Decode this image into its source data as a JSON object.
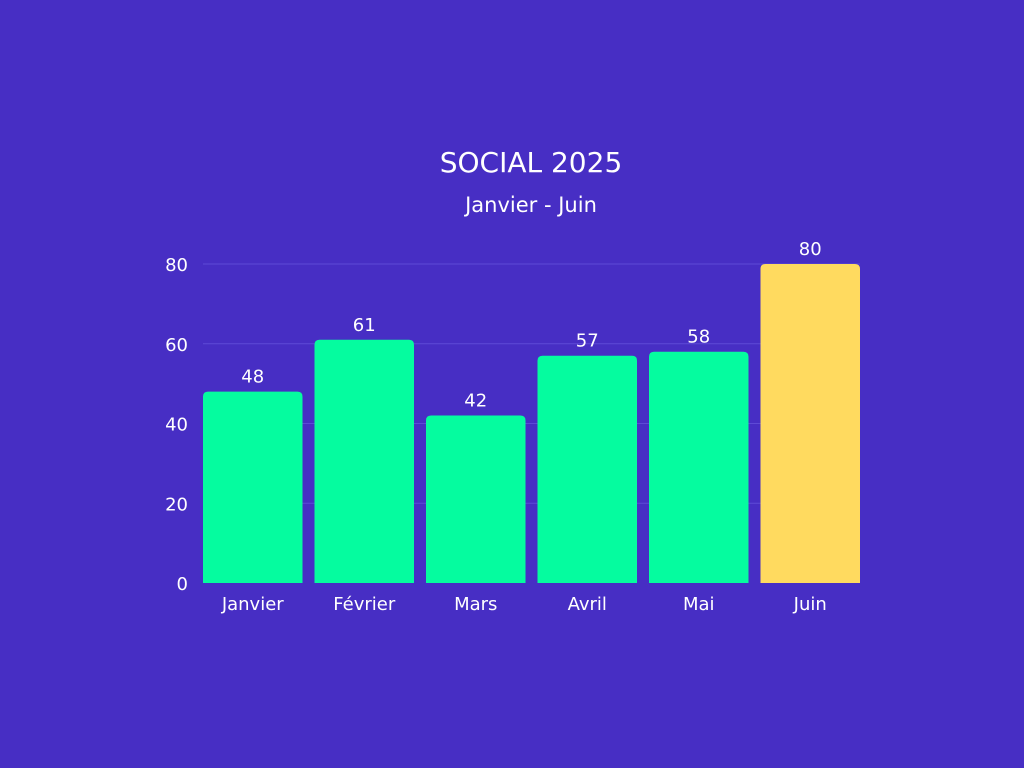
{
  "colors": {
    "background": "#472EC4",
    "bar_default": "#05FC9F",
    "bar_highlight": "#FFDA5F",
    "gridline": "#5E4AD6",
    "text": "#FFFFFF"
  },
  "chart_data": {
    "type": "bar",
    "title": "SOCIAL 2025",
    "subtitle": "Janvier - Juin",
    "xlabel": "",
    "ylabel": "",
    "categories": [
      "Janvier",
      "Février",
      "Mars",
      "Avril",
      "Mai",
      "Juin"
    ],
    "values": [
      48,
      61,
      42,
      57,
      58,
      80
    ],
    "data_labels": [
      "48",
      "61",
      "42",
      "57",
      "58",
      "80"
    ],
    "highlight_category": "Juin",
    "ylim": [
      0,
      80
    ],
    "yticks": [
      0,
      20,
      40,
      60,
      80
    ],
    "ytick_labels": [
      "0",
      "20",
      "40",
      "60",
      "80"
    ],
    "grid": true,
    "legend": "none"
  }
}
